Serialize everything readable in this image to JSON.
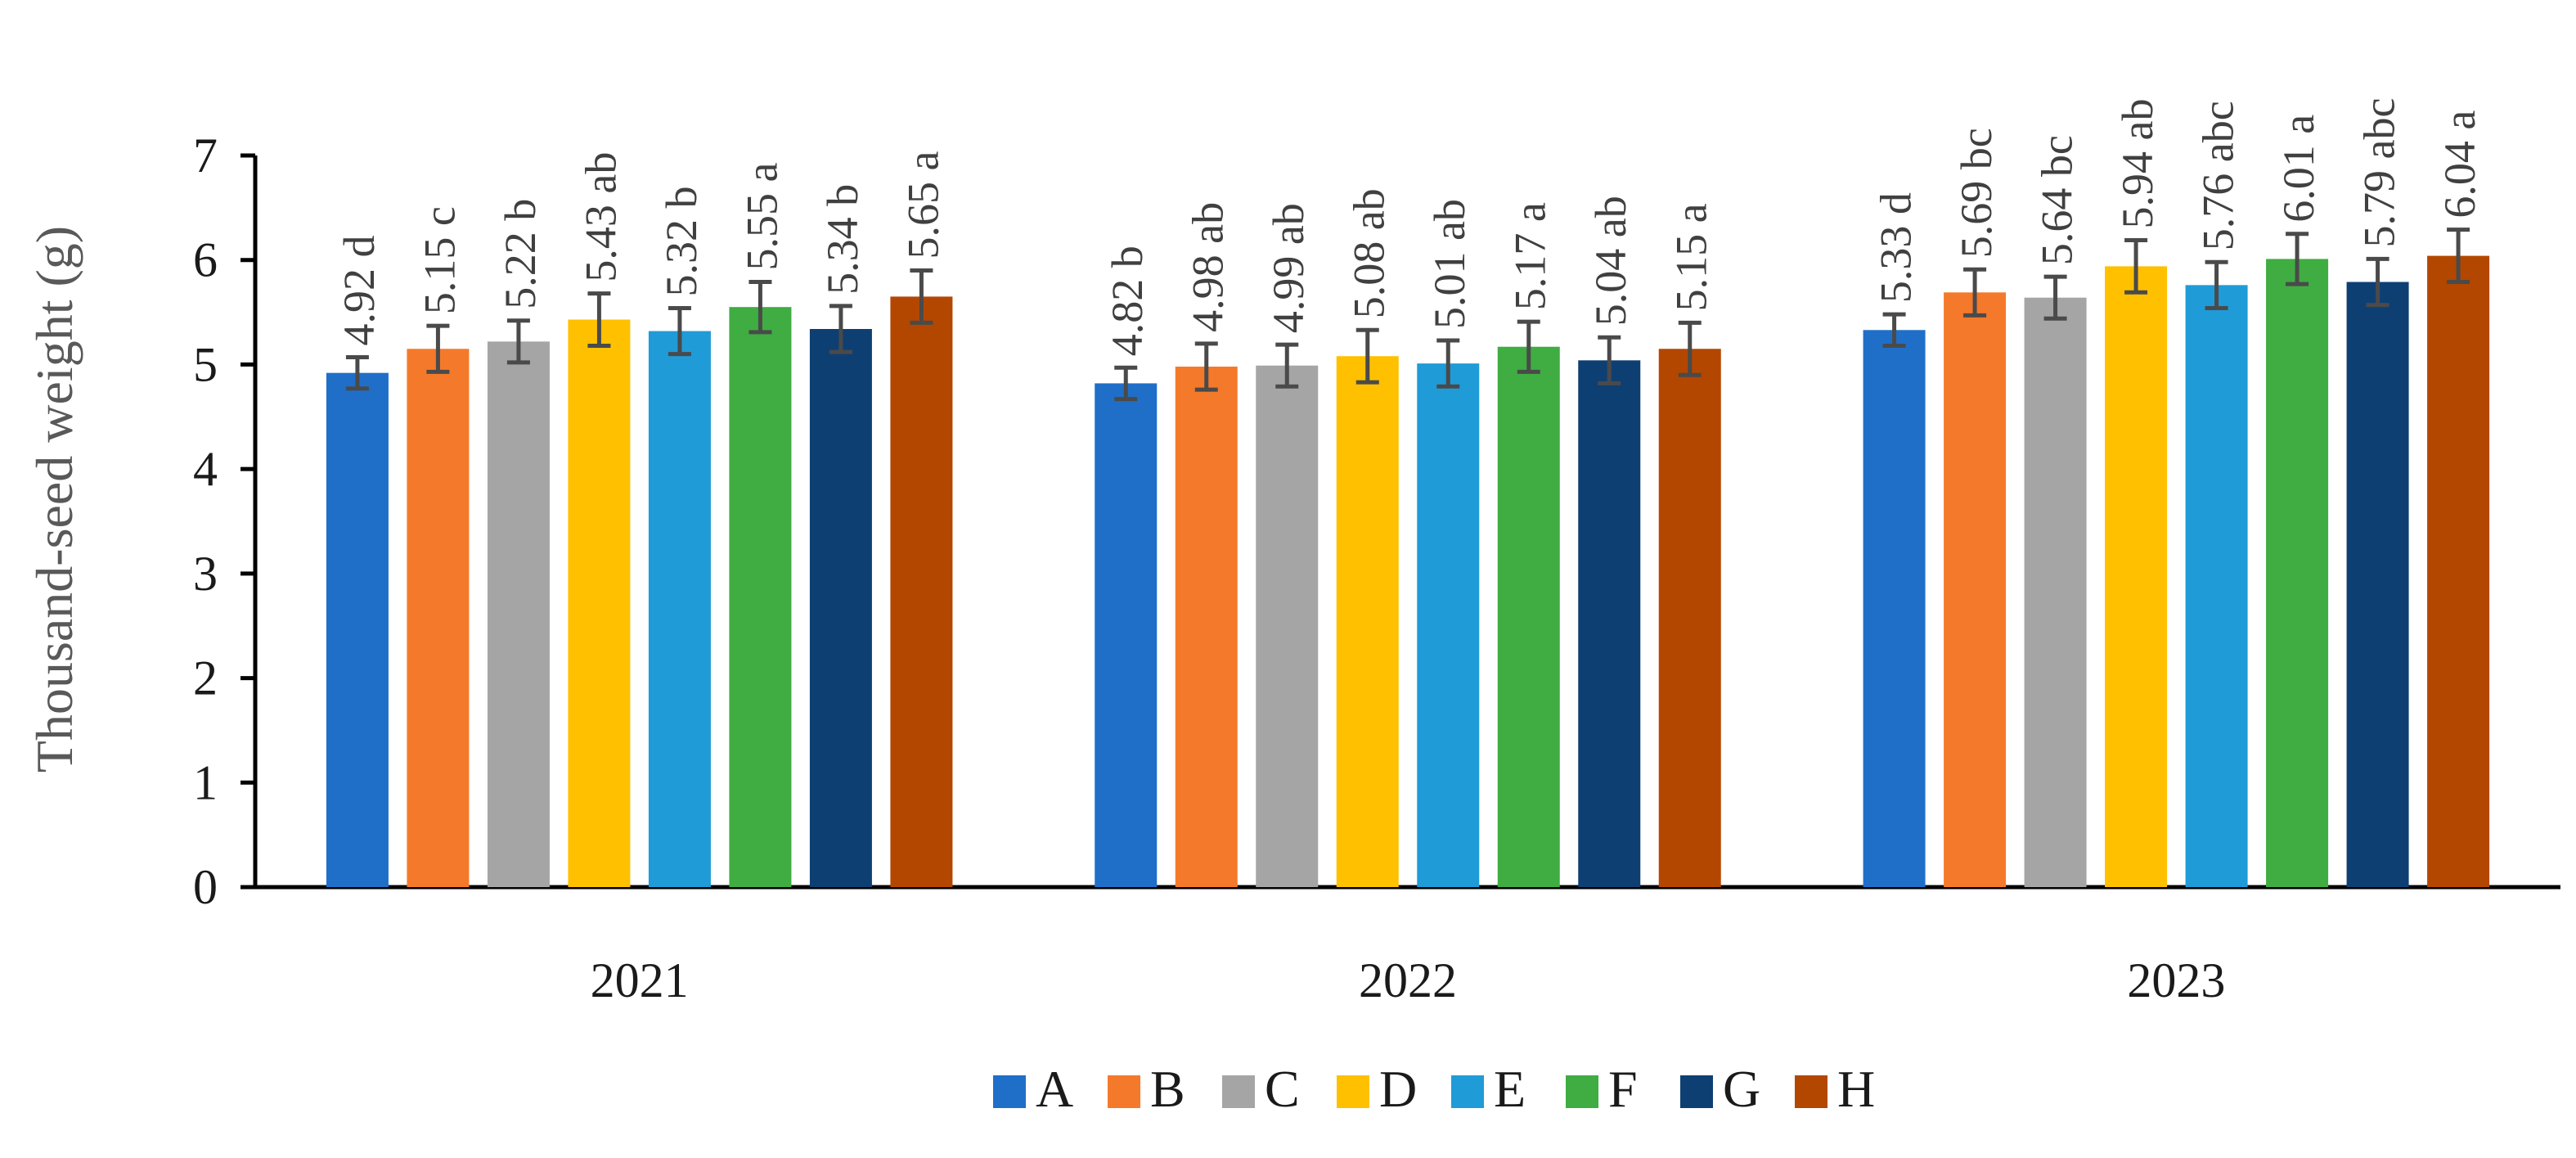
{
  "chart_data": {
    "type": "bar",
    "title": "",
    "xlabel": "",
    "ylabel": "Thousand-seed weight (g)",
    "ylim": [
      0,
      7
    ],
    "yticks": [
      0,
      1,
      2,
      3,
      4,
      5,
      6,
      7
    ],
    "grid": false,
    "legend_position": "bottom",
    "categories": [
      "2021",
      "2022",
      "2023"
    ],
    "series": [
      {
        "name": "A",
        "color": "#1f6fc8",
        "values": [
          4.92,
          4.82,
          5.33
        ],
        "errors": [
          0.15,
          0.15,
          0.15
        ],
        "labels": [
          "4.92 d",
          "4.82 b",
          "5.33 d"
        ]
      },
      {
        "name": "B",
        "color": "#f5792a",
        "values": [
          5.15,
          4.98,
          5.69
        ],
        "errors": [
          0.22,
          0.22,
          0.22
        ],
        "labels": [
          "5.15 c",
          "4.98 ab",
          "5.69 bc"
        ]
      },
      {
        "name": "C",
        "color": "#a5a5a5",
        "values": [
          5.22,
          4.99,
          5.64
        ],
        "errors": [
          0.2,
          0.2,
          0.2
        ],
        "labels": [
          "5.22 b",
          "4.99 ab",
          "5.64 bc"
        ]
      },
      {
        "name": "D",
        "color": "#ffc000",
        "values": [
          5.43,
          5.08,
          5.94
        ],
        "errors": [
          0.25,
          0.25,
          0.25
        ],
        "labels": [
          "5.43 ab",
          "5.08 ab",
          "5.94 ab"
        ]
      },
      {
        "name": "E",
        "color": "#1f9bd8",
        "values": [
          5.32,
          5.01,
          5.76
        ],
        "errors": [
          0.22,
          0.22,
          0.22
        ],
        "labels": [
          "5.32 b",
          "5.01 ab",
          "5.76 abc"
        ]
      },
      {
        "name": "F",
        "color": "#3fad41",
        "values": [
          5.55,
          5.17,
          6.01
        ],
        "errors": [
          0.24,
          0.24,
          0.24
        ],
        "labels": [
          "5.55 a",
          "5.17 a",
          "6.01 a"
        ]
      },
      {
        "name": "G",
        "color": "#0e3f73",
        "values": [
          5.34,
          5.04,
          5.79
        ],
        "errors": [
          0.22,
          0.22,
          0.22
        ],
        "labels": [
          "5.34 b",
          "5.04 ab",
          "5.79 abc"
        ]
      },
      {
        "name": "H",
        "color": "#b34700",
        "values": [
          5.65,
          5.15,
          6.04
        ],
        "errors": [
          0.25,
          0.25,
          0.25
        ],
        "labels": [
          "5.65 a",
          "5.15 a",
          "6.04 a"
        ]
      }
    ]
  }
}
